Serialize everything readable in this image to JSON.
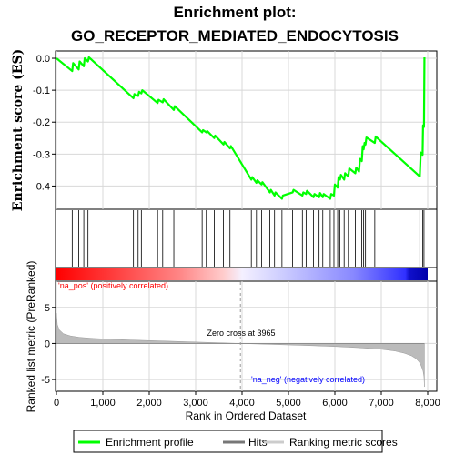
{
  "chart_data": {
    "type": "line",
    "title_line1": "Enrichment plot:",
    "title_line2": "GO_RECEPTOR_MEDIATED_ENDOCYTOSIS",
    "ylabel_top": "Enrichment score (ES)",
    "ylabel_bottom": "Ranked list metric (PreRanked)",
    "xlabel": "Rank in Ordered Dataset",
    "xlim": [
      0,
      8000
    ],
    "x_ticks": [
      0,
      1000,
      2000,
      3000,
      4000,
      5000,
      6000,
      7000,
      8000
    ],
    "x_tick_labels": [
      "0",
      "1,000",
      "2,000",
      "3,000",
      "4,000",
      "5,000",
      "6,000",
      "7,000",
      "8,000"
    ],
    "es_ylim": [
      -0.47,
      0.02
    ],
    "es_ticks": [
      0.0,
      -0.1,
      -0.2,
      -0.3,
      -0.4
    ],
    "es_tick_labels": [
      "0.0",
      "-0.1",
      "-0.2",
      "-0.3",
      "-0.4"
    ],
    "metric_ylim": [
      -6.5,
      8.5
    ],
    "metric_ticks": [
      5,
      0,
      -5
    ],
    "metric_tick_labels": [
      "5",
      "0",
      "-5"
    ],
    "enrichment_profile": {
      "x": [
        0,
        340,
        360,
        480,
        500,
        590,
        610,
        680,
        700,
        1660,
        1680,
        1760,
        1780,
        1830,
        1850,
        2180,
        2200,
        2290,
        2310,
        2530,
        2550,
        3140,
        3160,
        3230,
        3250,
        3400,
        3420,
        3600,
        3620,
        3740,
        3760,
        4200,
        4220,
        4310,
        4330,
        4420,
        4440,
        4600,
        4620,
        4700,
        4720,
        4860,
        4880,
        5090,
        5110,
        5300,
        5320,
        5380,
        5400,
        5540,
        5560,
        5660,
        5680,
        5740,
        5760,
        5900,
        5920,
        5980,
        6000,
        6060,
        6080,
        6110,
        6130,
        6200,
        6220,
        6290,
        6310,
        6440,
        6460,
        6520,
        6540,
        6580,
        6600,
        6620,
        6640,
        6660,
        6680,
        6860,
        6880,
        7830,
        7850,
        7890,
        7900,
        7920,
        7930
      ],
      "y": [
        0.0,
        -0.04,
        -0.015,
        -0.035,
        -0.01,
        -0.025,
        0.0,
        -0.01,
        0.003,
        -0.125,
        -0.112,
        -0.118,
        -0.105,
        -0.11,
        -0.1,
        -0.14,
        -0.13,
        -0.138,
        -0.128,
        -0.162,
        -0.15,
        -0.232,
        -0.225,
        -0.232,
        -0.228,
        -0.25,
        -0.242,
        -0.27,
        -0.262,
        -0.282,
        -0.275,
        -0.38,
        -0.372,
        -0.39,
        -0.382,
        -0.395,
        -0.388,
        -0.42,
        -0.412,
        -0.43,
        -0.42,
        -0.44,
        -0.43,
        -0.42,
        -0.412,
        -0.43,
        -0.42,
        -0.425,
        -0.415,
        -0.435,
        -0.425,
        -0.435,
        -0.422,
        -0.435,
        -0.425,
        -0.44,
        -0.425,
        -0.43,
        -0.395,
        -0.405,
        -0.372,
        -0.38,
        -0.365,
        -0.38,
        -0.36,
        -0.37,
        -0.345,
        -0.36,
        -0.342,
        -0.355,
        -0.315,
        -0.322,
        -0.275,
        -0.285,
        -0.265,
        -0.27,
        -0.248,
        -0.265,
        -0.245,
        -0.37,
        -0.295,
        -0.302,
        -0.21,
        -0.215,
        0.003
      ]
    },
    "hits": [
      340,
      480,
      590,
      680,
      1660,
      1760,
      1830,
      2180,
      2290,
      2530,
      3140,
      3230,
      3400,
      3600,
      3740,
      4200,
      4310,
      4420,
      4600,
      4700,
      4860,
      5090,
      5300,
      5380,
      5540,
      5660,
      5740,
      5900,
      5980,
      6060,
      6110,
      6200,
      6290,
      6440,
      6520,
      6580,
      6620,
      6660,
      6860,
      7830,
      7890,
      7920
    ],
    "ranked_metric": {
      "x": [
        0,
        20,
        60,
        150,
        300,
        500,
        800,
        1200,
        1600,
        2000,
        2500,
        3000,
        3500,
        3965,
        4500,
        5000,
        5500,
        6000,
        6500,
        7000,
        7300,
        7500,
        7650,
        7750,
        7820,
        7860,
        7900,
        7920,
        7930
      ],
      "y": [
        4.2,
        2.6,
        1.9,
        1.35,
        1.05,
        0.85,
        0.7,
        0.58,
        0.48,
        0.4,
        0.3,
        0.2,
        0.1,
        0.0,
        -0.1,
        -0.2,
        -0.3,
        -0.42,
        -0.58,
        -0.8,
        -1.05,
        -1.35,
        -1.7,
        -2.1,
        -2.6,
        -3.1,
        -3.8,
        -4.6,
        -6.0
      ]
    },
    "zero_cross_rank": 3965,
    "annotations": {
      "zero_cross": "Zero cross at 3965",
      "pos": "'na_pos' (positively correlated)",
      "neg": "'na_neg' (negatively correlated)"
    },
    "legend": [
      "Enrichment profile",
      "Hits",
      "Ranking metric scores"
    ],
    "colors": {
      "profile": "#00ff00",
      "hits": "#000000",
      "metric_fill": "#bbbbbb",
      "pos_text": "#ff0000",
      "neg_text": "#0000ff",
      "grid": "#d8d8d8"
    }
  }
}
